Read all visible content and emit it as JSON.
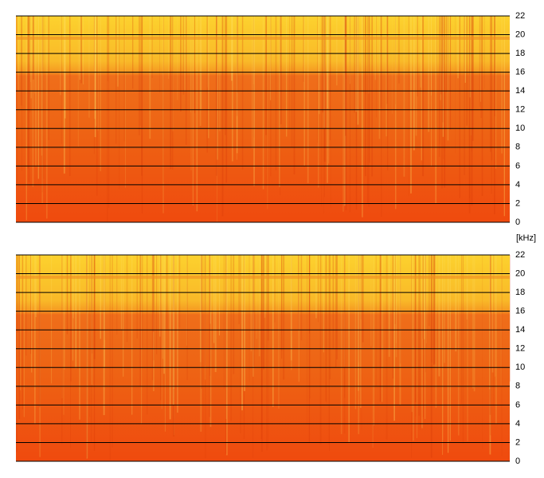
{
  "chart_data": [
    {
      "type": "spectrogram",
      "ylim": [
        0,
        22
      ],
      "yticks": [
        0,
        2,
        4,
        6,
        8,
        10,
        12,
        14,
        16,
        18,
        20,
        22
      ],
      "grid": true
    },
    {
      "type": "spectrogram",
      "y_label": "[kHz]",
      "ylim": [
        0,
        22
      ],
      "yticks": [
        0,
        2,
        4,
        6,
        8,
        10,
        12,
        14,
        16,
        18,
        20,
        22
      ],
      "grid": true
    }
  ]
}
